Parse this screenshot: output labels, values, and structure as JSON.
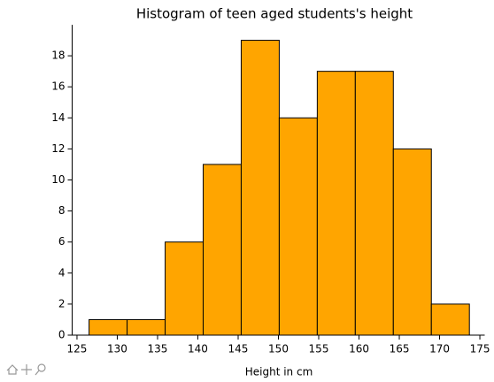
{
  "chart_data": {
    "type": "histogram",
    "title": "Histogram of teen aged students's height",
    "xlabel": "Height in cm",
    "bins": [
      126.5,
      131.22,
      135.94,
      140.66,
      145.38,
      150.1,
      154.82,
      159.54,
      164.26,
      168.98,
      173.7
    ],
    "values": [
      1,
      1,
      6,
      11,
      19,
      14,
      17,
      17,
      12,
      2
    ],
    "color": "#ffa500",
    "edgecolor": "#000000",
    "xlim": [
      124.4,
      175.6
    ],
    "xticks": [
      125,
      130,
      135,
      140,
      145,
      150,
      155,
      160,
      165,
      170,
      175
    ],
    "ylim": [
      0,
      20
    ],
    "yticks": [
      0,
      2,
      4,
      6,
      8,
      10,
      12,
      14,
      16,
      18
    ]
  }
}
